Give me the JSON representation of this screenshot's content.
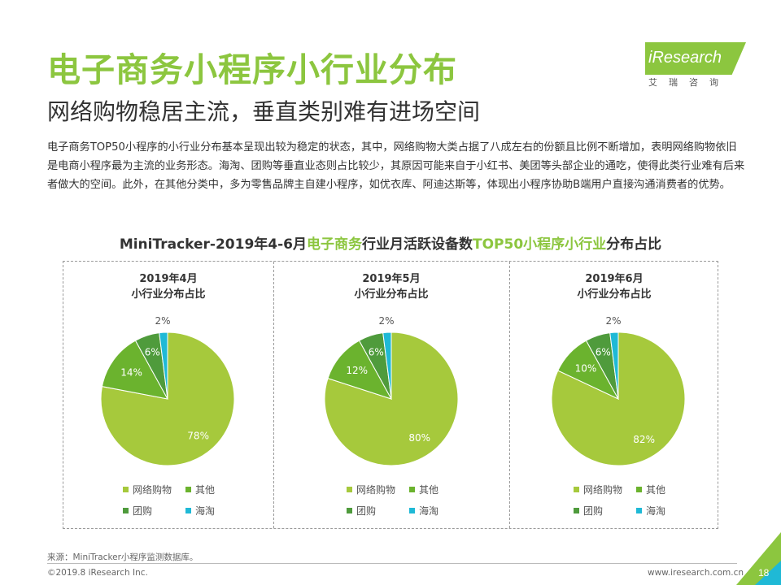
{
  "header": {
    "title": "电子商务小程序小行业分布",
    "subtitle": "网络购物稳居主流，垂直类别难有进场空间",
    "logo_text": "iResearch",
    "logo_sub": "艾瑞咨询"
  },
  "description": "电子商务TOP50小程序的小行业分布基本呈现出较为稳定的状态，其中，网络购物大类占据了八成左右的份额且比例不断增加，表明网络购物依旧是电商小程序最为主流的业务形态。海淘、团购等垂直业态则占比较少，其原因可能来自于小红书、美团等头部企业的通吃，使得此类行业难有后来者做大的空间。此外，在其他分类中，多为零售品牌主自建小程序，如优衣库、阿迪达斯等，体现出小程序协助B端用户直接沟通消费者的优势。",
  "chart_title": {
    "part1": "MiniTracker-2019年4-6月",
    "part2": "电子商务",
    "part3": "行业月活跃设备数",
    "part4": "TOP50小程序小行业",
    "part5": "分布占比"
  },
  "colors": {
    "网络购物": "#a6c93c",
    "其他": "#6bb32e",
    "团购": "#4f9b3c",
    "海淘": "#1fb9d6",
    "accent": "#8cc63f"
  },
  "legend": [
    "网络购物",
    "其他",
    "团购",
    "海淘"
  ],
  "chart_data": [
    {
      "type": "pie",
      "title": "2019年4月\n小行业分布占比",
      "title_line1": "2019年4月",
      "title_line2": "小行业分布占比",
      "series": [
        {
          "name": "网络购物",
          "value": 78,
          "label": "78%"
        },
        {
          "name": "其他",
          "value": 14,
          "label": "14%"
        },
        {
          "name": "团购",
          "value": 6,
          "label": "6%"
        },
        {
          "name": "海淘",
          "value": 2,
          "label": "2%"
        }
      ]
    },
    {
      "type": "pie",
      "title": "2019年5月\n小行业分布占比",
      "title_line1": "2019年5月",
      "title_line2": "小行业分布占比",
      "series": [
        {
          "name": "网络购物",
          "value": 80,
          "label": "80%"
        },
        {
          "name": "其他",
          "value": 12,
          "label": "12%"
        },
        {
          "name": "团购",
          "value": 6,
          "label": "6%"
        },
        {
          "name": "海淘",
          "value": 2,
          "label": "2%"
        }
      ]
    },
    {
      "type": "pie",
      "title": "2019年6月\n小行业分布占比",
      "title_line1": "2019年6月",
      "title_line2": "小行业分布占比",
      "series": [
        {
          "name": "网络购物",
          "value": 82,
          "label": "82%"
        },
        {
          "name": "其他",
          "value": 10,
          "label": "10%"
        },
        {
          "name": "团购",
          "value": 6,
          "label": "6%"
        },
        {
          "name": "海淘",
          "value": 2,
          "label": "2%"
        }
      ]
    }
  ],
  "footer": {
    "source": "来源：MiniTracker小程序监测数据库。",
    "copyright": "©2019.8 iResearch Inc.",
    "website": "www.iresearch.com.cn",
    "page": "18"
  }
}
